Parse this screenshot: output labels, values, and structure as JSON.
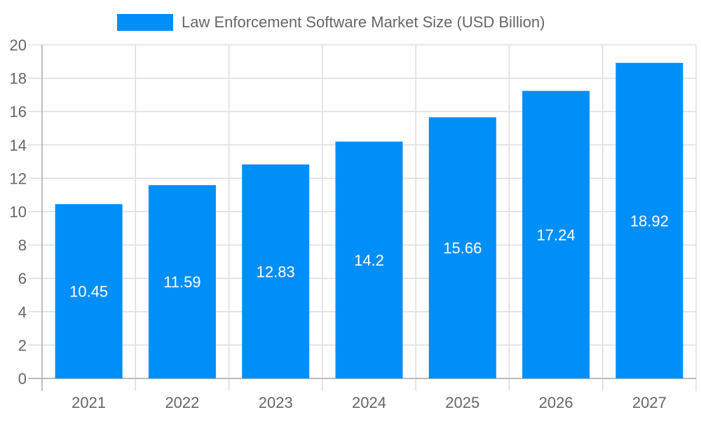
{
  "chart_data": {
    "type": "bar",
    "categories": [
      "2021",
      "2022",
      "2023",
      "2024",
      "2025",
      "2026",
      "2027"
    ],
    "series": [
      {
        "name": "Law Enforcement Software Market Size (USD Billion)",
        "values": [
          10.45,
          11.59,
          12.83,
          14.2,
          15.66,
          17.24,
          18.92
        ]
      }
    ],
    "data_labels": [
      "10.45",
      "11.59",
      "12.83",
      "14.2",
      "15.66",
      "17.24",
      "18.92"
    ],
    "yticks": [
      "0",
      "2",
      "4",
      "6",
      "8",
      "10",
      "12",
      "14",
      "16",
      "18",
      "20"
    ],
    "ylim": [
      0,
      20
    ],
    "grid": true,
    "legend": "top-center",
    "bar_color": "#008ef9"
  }
}
